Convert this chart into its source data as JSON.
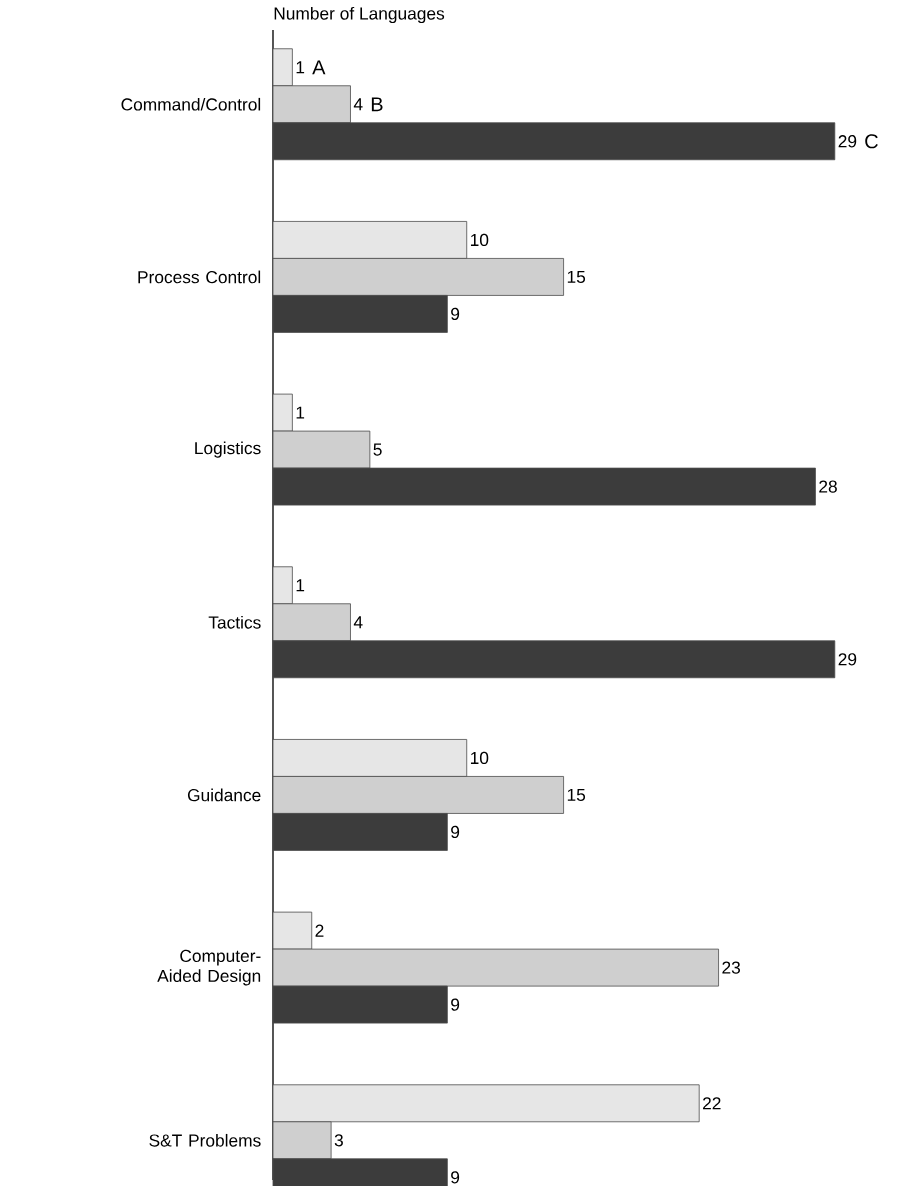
{
  "chart_data": {
    "type": "bar",
    "orientation": "horizontal",
    "title": "Number of Languages",
    "categories": [
      "Command/Control",
      "Process Control",
      "Logistics",
      "Tactics",
      "Guidance",
      "Computer-Aided Design",
      "S&T Problems"
    ],
    "series": [
      {
        "name": "A",
        "color": "#e6e6e6",
        "values": [
          1,
          10,
          1,
          1,
          10,
          2,
          22
        ]
      },
      {
        "name": "B",
        "color": "#cfcfcf",
        "values": [
          4,
          15,
          5,
          4,
          15,
          23,
          3
        ]
      },
      {
        "name": "C",
        "color": "#3c3c3c",
        "values": [
          29,
          9,
          28,
          29,
          9,
          9,
          9
        ]
      }
    ],
    "data_labels": true,
    "tick_labels": "y"
  }
}
